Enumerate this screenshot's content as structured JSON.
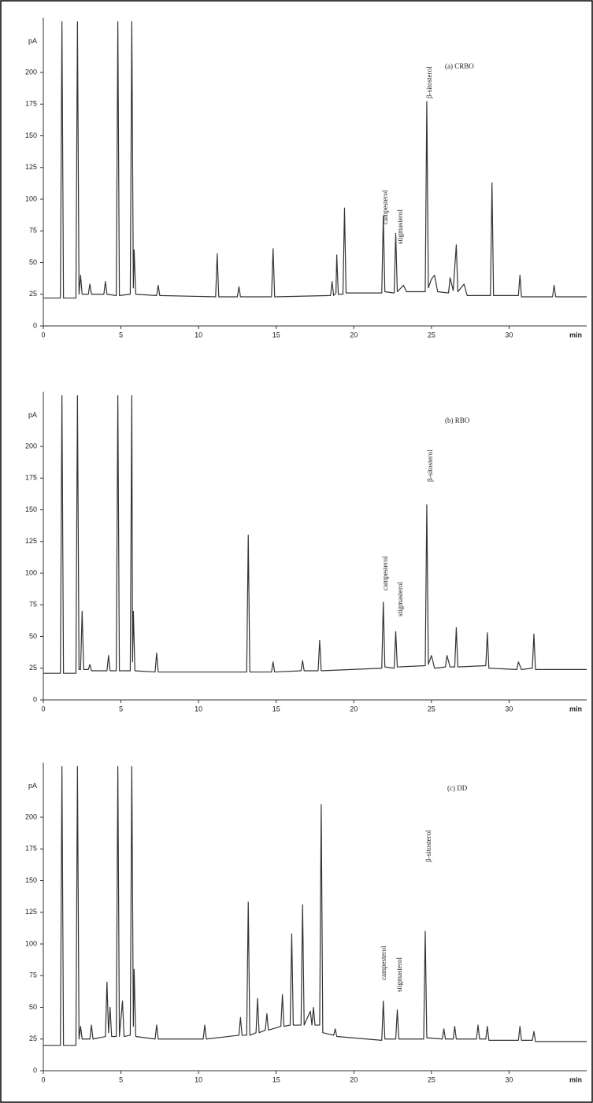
{
  "chart_data": [
    {
      "type": "line",
      "title": "(a) CRBO",
      "y_label": "pA",
      "x_label": "min",
      "annotations": [
        "campesterol",
        "stigmasterol",
        "β-sitosterol"
      ],
      "xlim": [
        0,
        35
      ],
      "xticks": [
        0,
        5,
        10,
        15,
        20,
        25,
        30
      ],
      "ylim": [
        0,
        240
      ],
      "yticks": [
        0,
        25,
        50,
        75,
        100,
        125,
        150,
        175,
        200
      ],
      "x": [
        0,
        1.1,
        1.2,
        1.3,
        2.1,
        2.2,
        2.3,
        2.4,
        2.5,
        2.9,
        3.0,
        3.1,
        3.9,
        4.0,
        4.1,
        4.7,
        4.8,
        4.9,
        5.6,
        5.7,
        5.8,
        5.85,
        5.95,
        7.3,
        7.4,
        7.5,
        11.1,
        11.2,
        11.3,
        12.5,
        12.6,
        12.7,
        14.7,
        14.8,
        14.9,
        18.5,
        18.6,
        18.7,
        18.85,
        18.9,
        19.0,
        19.3,
        19.4,
        19.5,
        21.8,
        21.9,
        22.0,
        22.6,
        22.7,
        22.8,
        23.2,
        23.4,
        24.6,
        24.7,
        24.8,
        25.0,
        25.2,
        25.4,
        26.1,
        26.2,
        26.4,
        26.6,
        26.7,
        27.1,
        27.3,
        28.8,
        28.9,
        29.0,
        30.6,
        30.7,
        30.8,
        32.8,
        32.9,
        33.0,
        35
      ],
      "series": [
        {
          "color": "#333333",
          "values": [
            22,
            22,
            240,
            22,
            22,
            240,
            25,
            40,
            25,
            25,
            33,
            25,
            25,
            35,
            25,
            24,
            240,
            24,
            25,
            240,
            30,
            60,
            25,
            24,
            32,
            24,
            23,
            57,
            23,
            23,
            31,
            23,
            23,
            61,
            23,
            24,
            35,
            24,
            26,
            56,
            25,
            25,
            93,
            26,
            26,
            87,
            27,
            26,
            73,
            27,
            32,
            27,
            27,
            177,
            30,
            37,
            40,
            27,
            26,
            38,
            28,
            64,
            27,
            33,
            24,
            24,
            113,
            24,
            24,
            40,
            23,
            23,
            32,
            23,
            23
          ]
        }
      ]
    },
    {
      "type": "line",
      "title": "(b) RBO",
      "y_label": "pA",
      "x_label": "min",
      "annotations": [
        "campesterol",
        "stigmasterol",
        "β-sitosterol"
      ],
      "xlim": [
        0,
        35
      ],
      "xticks": [
        0,
        5,
        10,
        15,
        20,
        25,
        30
      ],
      "ylim": [
        0,
        240
      ],
      "yticks": [
        0,
        25,
        50,
        75,
        100,
        125,
        150,
        175,
        200
      ],
      "x": [
        0,
        1.1,
        1.2,
        1.3,
        2.1,
        2.2,
        2.3,
        2.4,
        2.5,
        2.6,
        2.9,
        3.0,
        3.1,
        4.1,
        4.2,
        4.3,
        4.7,
        4.8,
        4.9,
        5.6,
        5.7,
        5.75,
        5.8,
        5.9,
        7.2,
        7.3,
        7.4,
        13.1,
        13.2,
        13.3,
        14.7,
        14.8,
        14.9,
        16.6,
        16.7,
        16.8,
        17.7,
        17.8,
        17.9,
        21.8,
        21.9,
        22.0,
        22.6,
        22.7,
        22.8,
        24.6,
        24.7,
        24.8,
        25.0,
        25.2,
        25.9,
        26.0,
        26.2,
        26.5,
        26.6,
        26.7,
        28.5,
        28.6,
        28.7,
        30.5,
        30.6,
        30.8,
        31.5,
        31.6,
        31.7,
        35
      ],
      "series": [
        {
          "color": "#333333",
          "values": [
            21,
            21,
            240,
            21,
            21,
            240,
            24,
            24,
            70,
            24,
            24,
            28,
            23,
            23,
            35,
            23,
            23,
            240,
            23,
            23,
            240,
            30,
            70,
            23,
            22,
            37,
            22,
            22,
            130,
            22,
            22,
            30,
            22,
            23,
            31,
            23,
            23,
            47,
            23,
            25,
            77,
            26,
            25,
            54,
            26,
            27,
            154,
            28,
            35,
            25,
            26,
            35,
            26,
            26,
            57,
            26,
            27,
            53,
            25,
            24,
            30,
            24,
            25,
            52,
            24,
            24
          ]
        }
      ]
    },
    {
      "type": "line",
      "title": "(c) DD",
      "y_label": "pA",
      "x_label": "min",
      "annotations": [
        "campesterol",
        "stigmasterol",
        "β-sitosterol"
      ],
      "xlim": [
        0,
        35
      ],
      "xticks": [
        0,
        5,
        10,
        15,
        20,
        25,
        30
      ],
      "ylim": [
        0,
        240
      ],
      "yticks": [
        0,
        25,
        50,
        75,
        100,
        125,
        150,
        175,
        200
      ],
      "x": [
        0,
        1.1,
        1.2,
        1.3,
        2.1,
        2.2,
        2.3,
        2.4,
        2.5,
        3.0,
        3.1,
        3.2,
        4.0,
        4.1,
        4.2,
        4.3,
        4.4,
        4.7,
        4.8,
        4.9,
        5.1,
        5.2,
        5.6,
        5.7,
        5.8,
        5.85,
        5.95,
        7.2,
        7.3,
        7.4,
        10.3,
        10.4,
        10.5,
        12.6,
        12.7,
        12.8,
        13.1,
        13.2,
        13.3,
        13.7,
        13.8,
        13.9,
        14.3,
        14.4,
        14.5,
        15.3,
        15.4,
        15.5,
        15.9,
        16.0,
        16.1,
        16.6,
        16.7,
        16.8,
        17.2,
        17.3,
        17.4,
        17.5,
        17.8,
        17.9,
        18.0,
        18.7,
        18.8,
        18.9,
        21.8,
        21.9,
        22.0,
        22.7,
        22.8,
        22.9,
        24.5,
        24.6,
        24.7,
        25.7,
        25.8,
        25.9,
        26.4,
        26.5,
        26.6,
        27.9,
        28.0,
        28.1,
        28.5,
        28.6,
        28.7,
        30.6,
        30.7,
        30.8,
        31.5,
        31.6,
        31.7,
        35
      ],
      "series": [
        {
          "color": "#333333",
          "values": [
            20,
            20,
            240,
            20,
            20,
            240,
            25,
            35,
            25,
            25,
            36,
            25,
            27,
            70,
            30,
            50,
            27,
            27,
            240,
            27,
            55,
            27,
            28,
            240,
            35,
            80,
            27,
            25,
            36,
            25,
            25,
            36,
            25,
            28,
            42,
            28,
            28,
            133,
            28,
            30,
            57,
            30,
            32,
            45,
            32,
            35,
            60,
            35,
            36,
            108,
            36,
            36,
            131,
            36,
            47,
            36,
            50,
            36,
            36,
            210,
            30,
            28,
            33,
            27,
            24,
            55,
            25,
            25,
            48,
            25,
            25,
            110,
            26,
            25,
            33,
            25,
            25,
            35,
            25,
            25,
            36,
            25,
            25,
            35,
            24,
            24,
            35,
            24,
            24,
            31,
            23,
            23
          ]
        }
      ]
    }
  ]
}
